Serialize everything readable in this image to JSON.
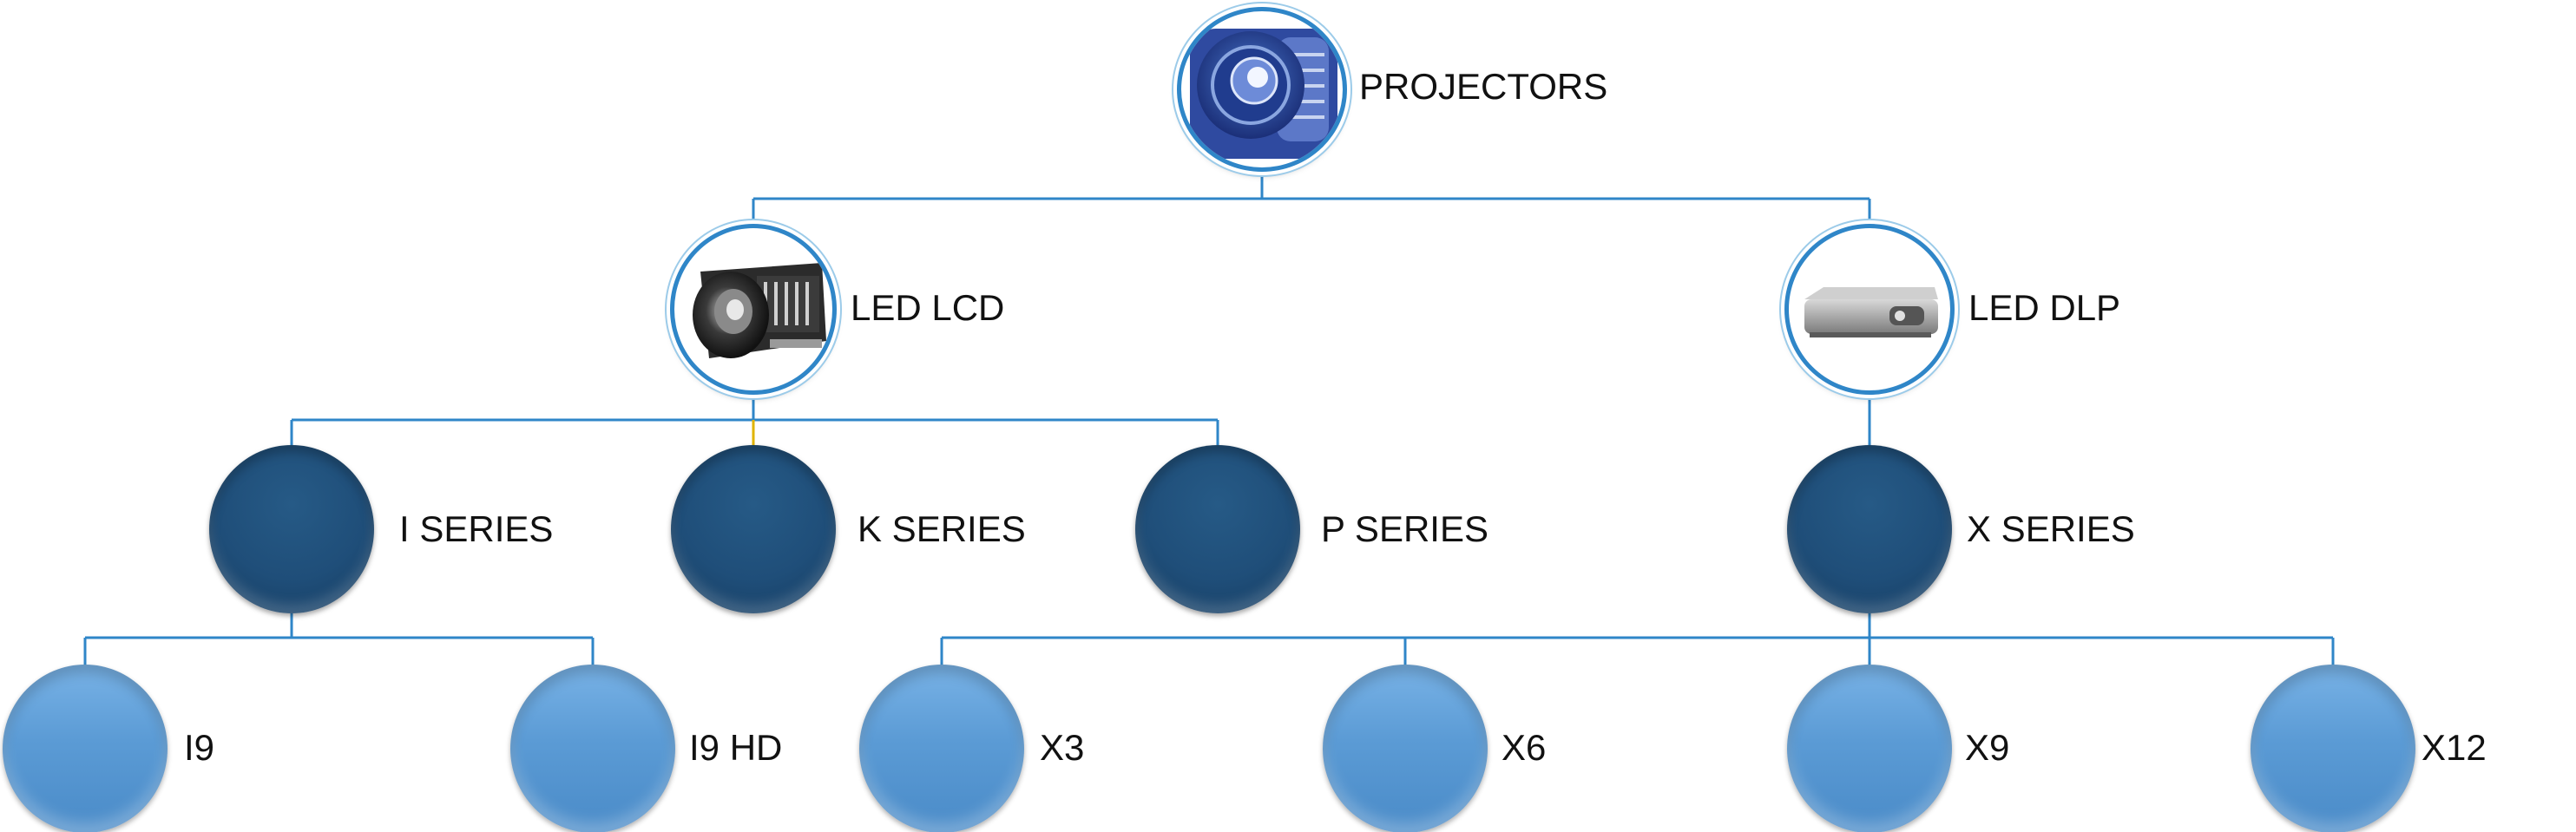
{
  "diagram": {
    "root": {
      "label": "PROJECTORS",
      "icon": "projector-lens-icon"
    },
    "categories": [
      {
        "label": "LED LCD",
        "icon": "lcd-projector-icon"
      },
      {
        "label": "LED DLP",
        "icon": "dlp-projector-icon"
      }
    ],
    "series": [
      {
        "label": "I SERIES"
      },
      {
        "label": "K SERIES"
      },
      {
        "label": "P SERIES"
      },
      {
        "label": "X SERIES"
      }
    ],
    "models": [
      {
        "label": "I9"
      },
      {
        "label": "I9 HD"
      },
      {
        "label": "X3"
      },
      {
        "label": "X6"
      },
      {
        "label": "X9"
      },
      {
        "label": "X12"
      }
    ],
    "colors": {
      "connector": "#2f86c8",
      "dark_node": "#1f4e79",
      "light_node": "#5b9bd5"
    }
  }
}
